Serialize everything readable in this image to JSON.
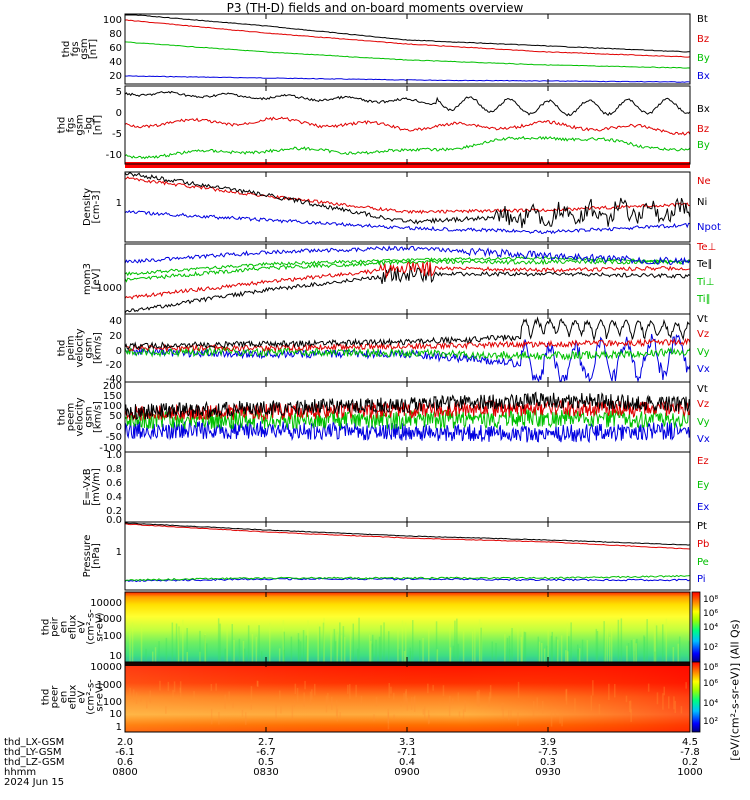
{
  "title": "P3 (TH-D) fields and on-board moments overview",
  "x_axis": {
    "rows": [
      {
        "label": "thd_LX-GSM",
        "values": [
          "2.0",
          "2.7",
          "3.3",
          "3.9",
          "4.5"
        ]
      },
      {
        "label": "thd_LY-GSM",
        "values": [
          "-6.1",
          "-6.7",
          "-7.1",
          "-7.5",
          "-7.8"
        ]
      },
      {
        "label": "thd_LZ-GSM",
        "values": [
          "0.6",
          "0.5",
          "0.4",
          "0.3",
          "0.2"
        ]
      },
      {
        "label": "hhmm",
        "values": [
          "0800",
          "0830",
          "0900",
          "0930",
          "1000"
        ]
      }
    ],
    "date": "2024 Jun 15"
  },
  "colorbar_label": "[eV/(cm²-s-sr-eV)] (All Qs)",
  "colorbar_ticks": [
    "10⁸",
    "10⁸",
    "10⁶",
    "10⁴",
    "10²"
  ],
  "colorbar_ticks2": [
    "10⁸",
    "10⁶",
    "10⁴",
    "10²"
  ],
  "panels": [
    {
      "ylabel": [
        "thd",
        "fgs",
        "gsm",
        "[nT]"
      ],
      "ticks": [
        "100",
        "80",
        "60",
        "40",
        "20"
      ],
      "legend": [
        {
          "t": "Bt",
          "c": "#000000"
        },
        {
          "t": "Bz",
          "c": "#e00000"
        },
        {
          "t": "By",
          "c": "#00c000"
        },
        {
          "t": "Bx",
          "c": "#0000e0"
        }
      ]
    },
    {
      "ylabel": [
        "thd",
        "fgs",
        "gsm",
        "-bg",
        "[nT]"
      ],
      "ticks": [
        "5",
        "0",
        "-5",
        "-10"
      ],
      "legend": [
        {
          "t": "Bx",
          "c": "#000000"
        },
        {
          "t": "Bz",
          "c": "#e00000"
        },
        {
          "t": "By",
          "c": "#00c000"
        }
      ]
    },
    {
      "ylabel": [
        "Density",
        "[cm-3]"
      ],
      "ticks": [
        "1"
      ],
      "legend": [
        {
          "t": "Ne",
          "c": "#e00000"
        },
        {
          "t": "Ni",
          "c": "#000000"
        },
        {
          "t": "Npot",
          "c": "#0000e0"
        }
      ]
    },
    {
      "ylabel": [
        "mom3",
        "[eV]"
      ],
      "ticks": [
        "1000"
      ],
      "legend": [
        {
          "t": "Te⊥",
          "c": "#e00000"
        },
        {
          "t": "Te∥",
          "c": "#000000"
        },
        {
          "t": "Ti⊥",
          "c": "#00c000"
        },
        {
          "t": "Ti∥",
          "c": "#00c000"
        }
      ]
    },
    {
      "ylabel": [
        "thd",
        "peim",
        "velocity",
        "gsm",
        "[km/s]"
      ],
      "ticks": [
        "40",
        "20",
        "0",
        "-20",
        "-40"
      ],
      "legend": [
        {
          "t": "Vt",
          "c": "#000000"
        },
        {
          "t": "Vz",
          "c": "#e00000"
        },
        {
          "t": "Vy",
          "c": "#00c000"
        },
        {
          "t": "Vx",
          "c": "#0000e0"
        }
      ]
    },
    {
      "ylabel": [
        "thd",
        "peem",
        "velocity",
        "gsm",
        "[km/s]"
      ],
      "ticks": [
        "200",
        "150",
        "100",
        "50",
        "0",
        "-50",
        "-100",
        "-150"
      ],
      "legend": [
        {
          "t": "Vt",
          "c": "#000000"
        },
        {
          "t": "Vz",
          "c": "#e00000"
        },
        {
          "t": "Vy",
          "c": "#00c000"
        },
        {
          "t": "Vx",
          "c": "#0000e0"
        }
      ]
    },
    {
      "ylabel": [
        "E=-VxB",
        "[mV/m]"
      ],
      "ticks": [
        "1.0",
        "0.8",
        "0.6",
        "0.4",
        "0.2",
        "0.0"
      ],
      "legend": [
        {
          "t": "Ez",
          "c": "#e00000"
        },
        {
          "t": "Ey",
          "c": "#00c000"
        },
        {
          "t": "Ex",
          "c": "#0000e0"
        }
      ]
    },
    {
      "ylabel": [
        "Pressure",
        "[nPa]"
      ],
      "ticks": [
        "1"
      ],
      "legend": [
        {
          "t": "Pt",
          "c": "#000000"
        },
        {
          "t": "Pb",
          "c": "#e00000"
        },
        {
          "t": "Pe",
          "c": "#00c000"
        },
        {
          "t": "Pi",
          "c": "#0000e0"
        }
      ]
    },
    {
      "ylabel": [
        "thd",
        "peir",
        "en",
        "eflux",
        "eV",
        "(cm²-s-",
        "sr-eV)"
      ],
      "ticks": [
        "10000",
        "1000",
        "100",
        "10"
      ],
      "legend": []
    },
    {
      "ylabel": [
        "thd",
        "peer",
        "en",
        "eflux",
        "eV",
        "(cm²-s-",
        "sr-eV)"
      ],
      "ticks": [
        "10000",
        "1000",
        "100",
        "10",
        "1"
      ],
      "legend": []
    }
  ],
  "chart_data": [
    {
      "type": "line",
      "title": "P3 (TH-D) fields and on-board moments overview",
      "ylabel": "thd fgs gsm [nT]",
      "x": [
        "0800",
        "0830",
        "0900",
        "0930",
        "1000"
      ],
      "series": [
        {
          "name": "Bt",
          "values": [
            102,
            82,
            68,
            60,
            54
          ]
        },
        {
          "name": "Bz",
          "values": [
            96,
            70,
            56,
            50,
            46
          ]
        },
        {
          "name": "By",
          "values": [
            55,
            42,
            34,
            30,
            27
          ]
        },
        {
          "name": "Bx",
          "values": [
            22,
            16,
            12,
            10,
            9
          ]
        }
      ]
    },
    {
      "type": "line",
      "ylabel": "thd fgs gsm-bg [nT]",
      "x": [
        "0800",
        "0830",
        "0900",
        "0930",
        "1000"
      ],
      "series": [
        {
          "name": "Bx",
          "values": [
            5,
            4,
            3,
            1,
            2
          ]
        },
        {
          "name": "Bz",
          "values": [
            -3,
            -2,
            -4,
            -3,
            -4
          ]
        },
        {
          "name": "By",
          "values": [
            -11,
            -9,
            -10,
            -6,
            -10
          ]
        }
      ]
    },
    {
      "type": "line",
      "ylabel": "Density [cm-3]",
      "yscale": "log",
      "x": [
        "0800",
        "0830",
        "0900",
        "0930",
        "1000"
      ],
      "series": [
        {
          "name": "Ne",
          "values": [
            2.4,
            1.1,
            0.6,
            0.55,
            0.85
          ]
        },
        {
          "name": "Ni",
          "values": [
            2.8,
            0.9,
            0.4,
            0.45,
            0.65
          ]
        },
        {
          "name": "Npot",
          "values": [
            0.55,
            0.38,
            0.28,
            0.32,
            0.4
          ]
        }
      ]
    },
    {
      "type": "line",
      "ylabel": "mom3 [eV]",
      "yscale": "log",
      "x": [
        "0800",
        "0830",
        "0900",
        "0930",
        "1000"
      ],
      "series": [
        {
          "name": "Te⊥",
          "values": [
            600,
            1400,
            2500,
            3200,
            2800
          ]
        },
        {
          "name": "Te∥",
          "values": [
            350,
            900,
            1900,
            2400,
            2200
          ]
        },
        {
          "name": "Ti⊥",
          "values": [
            2000,
            3500,
            4500,
            4200,
            4300
          ]
        },
        {
          "name": "Ti∥",
          "values": [
            1800,
            3000,
            4000,
            3800,
            3900
          ]
        }
      ]
    },
    {
      "type": "line",
      "ylabel": "thd peim velocity gsm [km/s]",
      "x": [
        "0800",
        "0830",
        "0900",
        "0930",
        "1000"
      ],
      "series": [
        {
          "name": "Vt",
          "values": [
            8,
            10,
            12,
            25,
            15
          ]
        },
        {
          "name": "Vz",
          "values": [
            4,
            5,
            6,
            8,
            10
          ]
        },
        {
          "name": "Vy",
          "values": [
            0,
            -2,
            0,
            -5,
            0
          ]
        },
        {
          "name": "Vx",
          "values": [
            2,
            0,
            0,
            -20,
            0
          ]
        }
      ]
    },
    {
      "type": "line",
      "ylabel": "thd peem velocity gsm [km/s]",
      "x": [
        "0800",
        "0830",
        "0900",
        "0930",
        "1000"
      ],
      "series": [
        {
          "name": "Vt",
          "values": [
            50,
            70,
            80,
            90,
            80
          ]
        },
        {
          "name": "Vz",
          "values": [
            30,
            40,
            50,
            60,
            50
          ]
        },
        {
          "name": "Vy",
          "values": [
            0,
            0,
            0,
            10,
            0
          ]
        },
        {
          "name": "Vx",
          "values": [
            -30,
            -40,
            -40,
            -50,
            -40
          ]
        }
      ]
    },
    {
      "type": "line",
      "ylabel": "E=-VxB [mV/m]",
      "ylim": [
        0,
        1
      ],
      "series": [
        {
          "name": "Ez",
          "values": []
        },
        {
          "name": "Ey",
          "values": []
        },
        {
          "name": "Ex",
          "values": []
        }
      ]
    },
    {
      "type": "line",
      "ylabel": "Pressure [nPa]",
      "yscale": "log",
      "x": [
        "0800",
        "0830",
        "0900",
        "0930",
        "1000"
      ],
      "series": [
        {
          "name": "Pt",
          "values": [
            3.9,
            2.7,
            1.9,
            1.5,
            1.2
          ]
        },
        {
          "name": "Pb",
          "values": [
            3.7,
            2.5,
            1.8,
            1.3,
            1.0
          ]
        },
        {
          "name": "Pe",
          "values": [
            0.18,
            0.12,
            0.1,
            0.1,
            0.15
          ]
        },
        {
          "name": "Pi",
          "values": [
            0.16,
            0.14,
            0.12,
            0.11,
            0.12
          ]
        }
      ]
    },
    {
      "type": "heatmap",
      "ylabel": "thd peir en eflux eV (cm²-s-sr-eV)",
      "yscale": "log",
      "ylim": [
        5,
        25000
      ]
    },
    {
      "type": "heatmap",
      "ylabel": "thd peer en eflux eV (cm²-s-sr-eV)",
      "yscale": "log",
      "ylim": [
        1,
        25000
      ]
    }
  ]
}
